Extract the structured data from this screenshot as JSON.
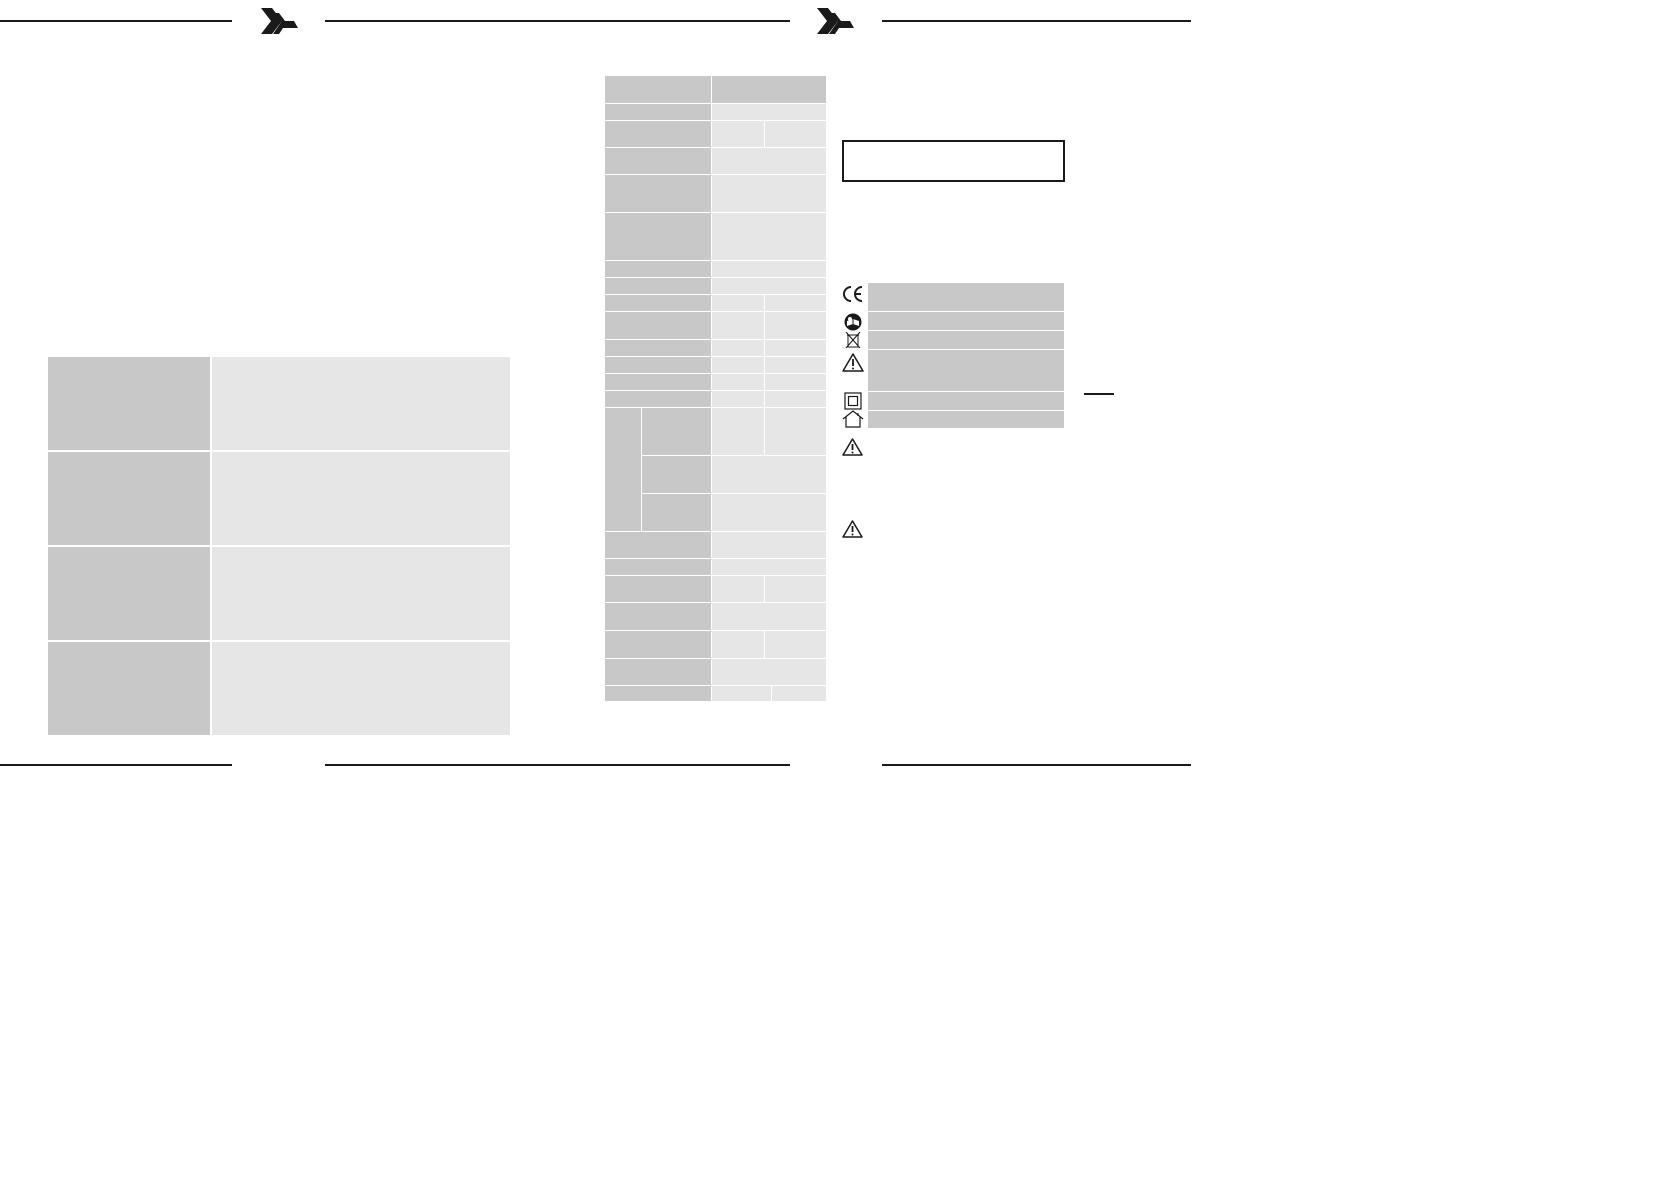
{
  "header": {
    "logo_icon": "brand-chevron-logo"
  },
  "colors": {
    "rule": "#1a1a1a",
    "label_cell": "#c8c8c8",
    "value_cell": "#e6e6e6",
    "page_bg": "#ffffff"
  },
  "left_page": {
    "feature_table": {
      "rows": 4,
      "columns": 2
    }
  },
  "right_page": {
    "spec_table": {
      "rows": 27
    },
    "symbols_legend": {
      "items": [
        {
          "icon": "ce-mark-icon"
        },
        {
          "icon": "read-manual-icon"
        },
        {
          "icon": "weee-crossed-bin-icon"
        },
        {
          "icon": "warning-triangle-icon"
        },
        {
          "icon": "protection-class-ii-icon"
        },
        {
          "icon": "indoor-use-house-icon"
        }
      ]
    },
    "warning_icons": [
      "warning-triangle-icon",
      "warning-triangle-icon"
    ]
  },
  "side_tab": {
    "icon": "thumb-index-tab"
  }
}
